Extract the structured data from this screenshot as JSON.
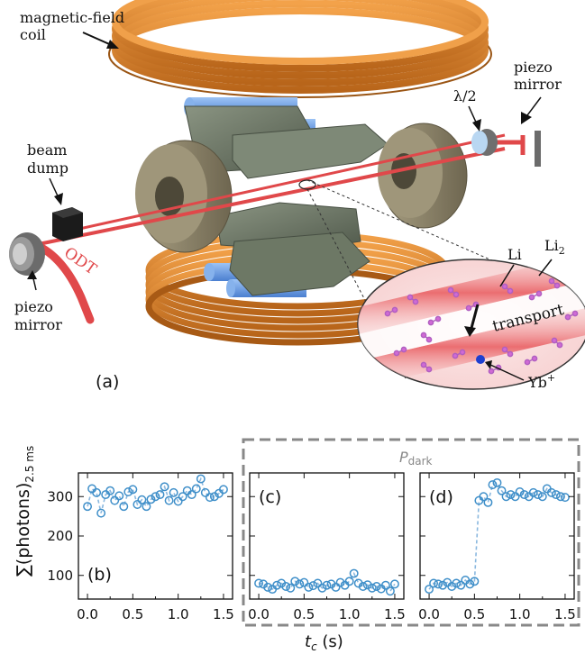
{
  "schematic": {
    "labels": {
      "coil_line1": "magnetic-field",
      "coil_line2": "coil",
      "half_wave": "λ/2",
      "piezo_top_line1": "piezo",
      "piezo_top_line2": "mirror",
      "beam_dump_line1": "beam",
      "beam_dump_line2": "dump",
      "odt": "ODT",
      "piezo_left_line1": "piezo",
      "piezo_left_line2": "mirror",
      "li": "Li",
      "li2": "Li",
      "li2_sub": "2",
      "transport": "transport",
      "yb": "Yb",
      "yb_sup": "+",
      "panel_a": "(a)"
    },
    "colors": {
      "coil": "#e08a2c",
      "electrode": "#6f7a66",
      "endcap": "#8d8468",
      "rod": "#6f9fe0",
      "laser": "#e0484a",
      "frame": "#888888"
    }
  },
  "chart_data": [
    {
      "type": "scatter",
      "panel": "(b)",
      "x": [
        0.0,
        0.05,
        0.1,
        0.15,
        0.2,
        0.25,
        0.3,
        0.35,
        0.4,
        0.45,
        0.5,
        0.55,
        0.6,
        0.65,
        0.7,
        0.75,
        0.8,
        0.85,
        0.9,
        0.95,
        1.0,
        1.05,
        1.1,
        1.15,
        1.2,
        1.25,
        1.3,
        1.35,
        1.4,
        1.45,
        1.5
      ],
      "y": [
        275,
        320,
        310,
        258,
        305,
        315,
        290,
        302,
        275,
        312,
        318,
        280,
        292,
        275,
        293,
        300,
        305,
        325,
        290,
        310,
        288,
        300,
        315,
        305,
        320,
        345,
        310,
        298,
        300,
        308,
        318
      ],
      "xlim": [
        -0.1,
        1.6
      ],
      "ylim": [
        40,
        360
      ],
      "xticks": [
        "0.0",
        "0.5",
        "1.0",
        "1.5"
      ],
      "yticks": [
        "100",
        "200",
        "300"
      ],
      "ylabel": "∑(photons)",
      "ylabel_sub": "2.5 ms"
    },
    {
      "type": "scatter",
      "panel": "(c)",
      "x": [
        0.0,
        0.05,
        0.1,
        0.15,
        0.2,
        0.25,
        0.3,
        0.35,
        0.4,
        0.45,
        0.5,
        0.55,
        0.6,
        0.65,
        0.7,
        0.75,
        0.8,
        0.85,
        0.9,
        0.95,
        1.0,
        1.05,
        1.1,
        1.15,
        1.2,
        1.25,
        1.3,
        1.35,
        1.4,
        1.45,
        1.5
      ],
      "y": [
        80,
        78,
        70,
        65,
        75,
        80,
        72,
        68,
        85,
        78,
        82,
        70,
        74,
        80,
        68,
        75,
        78,
        70,
        82,
        75,
        85,
        105,
        80,
        72,
        76,
        68,
        72,
        66,
        75,
        60,
        78
      ],
      "xlim": [
        -0.1,
        1.6
      ],
      "ylim": [
        40,
        360
      ],
      "xticks": [
        "0.0",
        "0.5",
        "1.0",
        "1.5"
      ]
    },
    {
      "type": "scatter",
      "panel": "(d)",
      "x": [
        0.0,
        0.05,
        0.1,
        0.15,
        0.2,
        0.25,
        0.3,
        0.35,
        0.4,
        0.45,
        0.5,
        0.55,
        0.6,
        0.65,
        0.7,
        0.75,
        0.8,
        0.85,
        0.9,
        0.95,
        1.0,
        1.05,
        1.1,
        1.15,
        1.2,
        1.25,
        1.3,
        1.35,
        1.4,
        1.45,
        1.5
      ],
      "y": [
        65,
        80,
        78,
        75,
        82,
        72,
        80,
        75,
        88,
        78,
        85,
        290,
        300,
        285,
        330,
        335,
        315,
        300,
        305,
        300,
        312,
        305,
        300,
        310,
        305,
        300,
        320,
        310,
        305,
        300,
        298
      ],
      "xlim": [
        -0.1,
        1.6
      ],
      "ylim": [
        40,
        360
      ],
      "xticks": [
        "0.0",
        "0.5",
        "1.0",
        "1.5"
      ]
    }
  ],
  "shared": {
    "xlabel": "t",
    "xlabel_sub": "c",
    "xlabel_unit": " (s)",
    "p_dark": "P",
    "p_dark_sub": "dark",
    "marker_color": "#3f8fc9",
    "line_color": "#8ab8df"
  }
}
